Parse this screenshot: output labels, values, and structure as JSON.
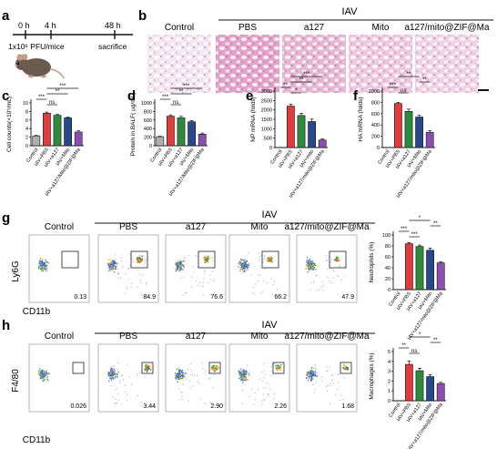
{
  "panels": {
    "a": {
      "letter": "a",
      "time_0": "0 h",
      "time_4": "4 h",
      "time_48": "48 h",
      "dose": "1x10⁶ PFU/mice",
      "endpoint": "sacrifice"
    },
    "b": {
      "letter": "b",
      "group_header": "IAV",
      "labels": [
        "Control",
        "PBS",
        "a127",
        "Mito",
        "a127/mito@ZIF@Ma"
      ],
      "colors": [
        "#f3e4ef",
        "#e2a3c8",
        "#e6b7d3",
        "#ecc7de",
        "#efd2e3"
      ]
    },
    "flow_g": {
      "letter": "g",
      "group_header": "IAV",
      "labels": [
        "Control",
        "PBS",
        "a127",
        "Mito",
        "a127/mito@ZIF@Ma"
      ],
      "values": [
        "0.13",
        "84.9",
        "76.6",
        "66.2",
        "47.9"
      ],
      "ylabel": "Ly6G",
      "xlabel": "CD11b"
    },
    "flow_h": {
      "letter": "h",
      "group_header": "IAV",
      "labels": [
        "Control",
        "PBS",
        "a127",
        "Mito",
        "a127/mito@ZIF@Ma"
      ],
      "values": [
        "0.026",
        "3.44",
        "2.90",
        "2.26",
        "1.68"
      ],
      "ylabel": "F4/80",
      "xlabel": "CD11b"
    }
  },
  "chart_data": [
    {
      "id": "c",
      "letter": "c",
      "type": "bar",
      "categories": [
        "Control",
        "IAV+PBS",
        "IAV+a127",
        "IAV+Mito",
        "IAV+a127/Mito@ZIF@Ma"
      ],
      "values": [
        2.3,
        7.6,
        7.1,
        6.5,
        3.2
      ],
      "errors": [
        0.1,
        0.25,
        0.2,
        0.2,
        0.3
      ],
      "ylabel": "Cell counts(×10⁵/mL)",
      "ylim": [
        0,
        10
      ],
      "yticks": [
        0,
        2,
        4,
        6,
        8,
        10
      ],
      "colors": [
        "#b0b0b0",
        "#e23b3b",
        "#2e8b3e",
        "#27488c",
        "#8a4fb0"
      ],
      "sig": [
        {
          "from": 1,
          "to": 2,
          "label": "ns"
        },
        {
          "from": 1,
          "to": 3,
          "label": "**"
        },
        {
          "from": 0,
          "to": 1,
          "label": "***"
        },
        {
          "from": 1,
          "to": 4,
          "label": "***"
        }
      ]
    },
    {
      "id": "d",
      "letter": "d",
      "type": "bar",
      "categories": [
        "Control",
        "IAV+PBS",
        "IAV+a127",
        "IAV+Mito",
        "IAV+a127/Mito@ZIF@Ma"
      ],
      "values": [
        210,
        690,
        650,
        560,
        270
      ],
      "errors": [
        10,
        30,
        35,
        25,
        25
      ],
      "ylabel": "Protein in BALF( µg/mL)",
      "ylim": [
        0,
        1000
      ],
      "yticks": [
        0,
        200,
        400,
        600,
        800,
        1000
      ],
      "colors": [
        "#b0b0b0",
        "#e23b3b",
        "#2e8b3e",
        "#27488c",
        "#8a4fb0"
      ],
      "sig": [
        {
          "from": 1,
          "to": 2,
          "label": "ns"
        },
        {
          "from": 1,
          "to": 3,
          "label": "**"
        },
        {
          "from": 0,
          "to": 1,
          "label": "***"
        },
        {
          "from": 1,
          "to": 4,
          "label": "***"
        }
      ]
    },
    {
      "id": "e",
      "letter": "e",
      "type": "bar",
      "categories": [
        "Control",
        "IAV+PBS",
        "IAV+a127",
        "IAV+mito",
        "IAV+a127/mito@ZIF@Ma"
      ],
      "values": [
        0,
        2200,
        1700,
        1380,
        400
      ],
      "errors": [
        0,
        100,
        120,
        130,
        60
      ],
      "ylabel": "NP mRNA (folds)",
      "ylim": [
        0,
        3000
      ],
      "yticks": [
        0,
        500,
        1000,
        1500,
        2000,
        2500,
        3000
      ],
      "colors": [
        "#b0b0b0",
        "#e23b3b",
        "#2e8b3e",
        "#27488c",
        "#8a4fb0"
      ],
      "sig": [
        {
          "from": 1,
          "to": 2,
          "label": "*"
        },
        {
          "from": 1,
          "to": 3,
          "label": "**"
        },
        {
          "from": 0,
          "to": 1,
          "label": "**"
        },
        {
          "from": 1,
          "to": 4,
          "label": "***"
        }
      ]
    },
    {
      "id": "f",
      "letter": "f",
      "type": "bar",
      "categories": [
        "Control",
        "IAV+PBS",
        "IAV+a127",
        "IAV+Mito",
        "IAV+a127/mito@ZIF@Ma"
      ],
      "values": [
        0,
        780,
        640,
        540,
        270
      ],
      "errors": [
        0,
        20,
        40,
        30,
        30
      ],
      "ylabel": "HA mRNA (folds)",
      "ylim": [
        0,
        1000
      ],
      "yticks": [
        0,
        200,
        400,
        600,
        800,
        1000
      ],
      "colors": [
        "#b0b0b0",
        "#e23b3b",
        "#2e8b3e",
        "#27488c",
        "#8a4fb0"
      ],
      "sig": [
        {
          "from": 1,
          "to": 2,
          "label": "ns"
        },
        {
          "from": 1,
          "to": 3,
          "label": "**"
        },
        {
          "from": 0,
          "to": 1,
          "label": "***"
        },
        {
          "from": 3,
          "to": 4,
          "label": "**"
        }
      ]
    },
    {
      "id": "g",
      "letter": "",
      "type": "bar",
      "categories": [
        "Control",
        "IAV+PBS",
        "IAV+a127",
        "IAV+Mito",
        "IAV+a127/mito@ZIF@Ma"
      ],
      "values": [
        0,
        84,
        79,
        72,
        49
      ],
      "errors": [
        0,
        2,
        2.5,
        4,
        2
      ],
      "ylabel": "Neutrophils (%)",
      "ylim": [
        0,
        100
      ],
      "yticks": [
        0,
        20,
        40,
        60,
        80,
        100
      ],
      "colors": [
        "#b0b0b0",
        "#e23b3b",
        "#2e8b3e",
        "#27488c",
        "#8a4fb0"
      ],
      "sig": [
        {
          "from": 1,
          "to": 2,
          "label": "***"
        },
        {
          "from": 1,
          "to": 3,
          "label": "*"
        },
        {
          "from": 0,
          "to": 1,
          "label": "***"
        },
        {
          "from": 3,
          "to": 4,
          "label": "**"
        }
      ]
    },
    {
      "id": "h",
      "letter": "",
      "type": "bar",
      "categories": [
        "Control",
        "IAV+PBS",
        "IAV+a127",
        "IAV+Mito",
        "IAV+a127/mito@ZIF@Ma"
      ],
      "values": [
        0,
        3.7,
        3.05,
        2.45,
        1.75
      ],
      "errors": [
        0,
        0.35,
        0.25,
        0.2,
        0.12
      ],
      "ylabel": "Macrophages (%)",
      "ylim": [
        0,
        5
      ],
      "yticks": [
        0,
        1,
        2,
        3,
        4,
        5
      ],
      "colors": [
        "#b0b0b0",
        "#e23b3b",
        "#2e8b3e",
        "#27488c",
        "#8a4fb0"
      ],
      "sig": [
        {
          "from": 1,
          "to": 2,
          "label": "ns"
        },
        {
          "from": 1,
          "to": 3,
          "label": "*"
        },
        {
          "from": 0,
          "to": 1,
          "label": "**"
        },
        {
          "from": 3,
          "to": 4,
          "label": "**"
        }
      ]
    }
  ]
}
